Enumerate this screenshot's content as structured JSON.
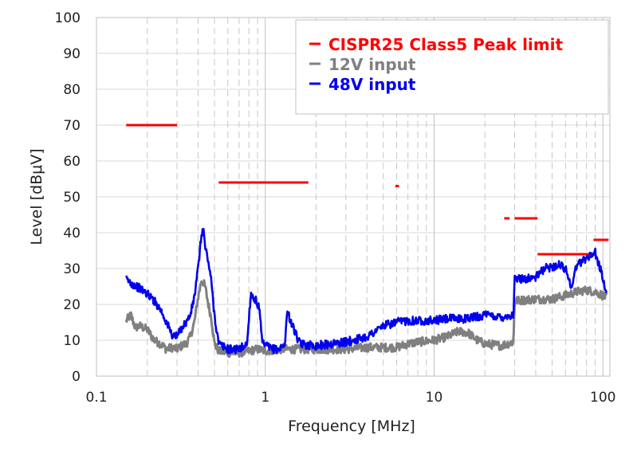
{
  "chart_data": {
    "type": "line",
    "xscale": "log",
    "xlabel": "Frequency [MHz]",
    "ylabel": "Level [dBμV]",
    "xlim": [
      0.1,
      110
    ],
    "ylim": [
      0,
      100
    ],
    "x_ticks": [
      0.1,
      1,
      10,
      100
    ],
    "x_tick_labels": [
      "0.1",
      "1",
      "10",
      "100"
    ],
    "y_ticks": [
      0,
      10,
      20,
      30,
      40,
      50,
      60,
      70,
      80,
      90,
      100
    ],
    "y_tick_labels": [
      "0",
      "10",
      "20",
      "30",
      "40",
      "50",
      "60",
      "70",
      "80",
      "90",
      "100"
    ],
    "grid": "dashed vertical minor lines, solid horizontal major lines",
    "legend_position": "top-right",
    "legend": [
      {
        "label": "CISPR25 Class5 Peak limit",
        "color": "#ff0000"
      },
      {
        "label": "12V input",
        "color": "#808080"
      },
      {
        "label": "48V input",
        "color": "#0000ee"
      }
    ],
    "limit_segments": [
      {
        "x": [
          0.15,
          0.3
        ],
        "y": 70
      },
      {
        "x": [
          0.53,
          1.8
        ],
        "y": 54
      },
      {
        "x": [
          5.9,
          6.2
        ],
        "y": 53
      },
      {
        "x": [
          26,
          28
        ],
        "y": 44
      },
      {
        "x": [
          30,
          41
        ],
        "y": 44
      },
      {
        "x": [
          41,
          88
        ],
        "y": 34
      },
      {
        "x": [
          88,
          108
        ],
        "y": 38
      }
    ],
    "series": [
      {
        "name": "12V input",
        "color": "#808080",
        "points": [
          [
            0.15,
            15.5
          ],
          [
            0.16,
            17
          ],
          [
            0.17,
            13.5
          ],
          [
            0.18,
            14
          ],
          [
            0.2,
            13
          ],
          [
            0.22,
            10
          ],
          [
            0.24,
            9
          ],
          [
            0.26,
            7.5
          ],
          [
            0.28,
            8
          ],
          [
            0.3,
            7.5
          ],
          [
            0.32,
            8.5
          ],
          [
            0.34,
            9
          ],
          [
            0.36,
            11
          ],
          [
            0.38,
            15
          ],
          [
            0.4,
            22
          ],
          [
            0.42,
            27
          ],
          [
            0.44,
            25
          ],
          [
            0.46,
            20
          ],
          [
            0.48,
            16
          ],
          [
            0.5,
            9
          ],
          [
            0.53,
            7
          ],
          [
            0.6,
            6.5
          ],
          [
            0.7,
            6.5
          ],
          [
            0.8,
            7
          ],
          [
            0.9,
            7.5
          ],
          [
            1.0,
            7
          ],
          [
            1.2,
            7.5
          ],
          [
            1.5,
            7.5
          ],
          [
            2,
            7.5
          ],
          [
            3,
            7.5
          ],
          [
            4,
            8
          ],
          [
            5,
            8
          ],
          [
            6,
            8
          ],
          [
            7,
            9
          ],
          [
            8,
            9.5
          ],
          [
            10,
            10
          ],
          [
            12,
            11
          ],
          [
            14,
            12.5
          ],
          [
            16,
            12
          ],
          [
            18,
            10
          ],
          [
            20,
            9
          ],
          [
            25,
            8.5
          ],
          [
            29.5,
            9.5
          ],
          [
            30,
            21
          ],
          [
            40,
            21.5
          ],
          [
            50,
            21.5
          ],
          [
            60,
            22.5
          ],
          [
            70,
            23.5
          ],
          [
            80,
            24
          ],
          [
            90,
            23.5
          ],
          [
            100,
            22.5
          ],
          [
            105,
            22
          ]
        ]
      },
      {
        "name": "48V input",
        "color": "#0000ee",
        "points": [
          [
            0.15,
            27
          ],
          [
            0.16,
            26
          ],
          [
            0.18,
            24.5
          ],
          [
            0.2,
            23
          ],
          [
            0.22,
            21
          ],
          [
            0.24,
            18.5
          ],
          [
            0.26,
            15
          ],
          [
            0.28,
            11.5
          ],
          [
            0.3,
            11
          ],
          [
            0.32,
            13.5
          ],
          [
            0.34,
            15
          ],
          [
            0.36,
            17
          ],
          [
            0.38,
            22
          ],
          [
            0.4,
            30
          ],
          [
            0.42,
            40
          ],
          [
            0.43,
            41
          ],
          [
            0.44,
            36
          ],
          [
            0.46,
            32
          ],
          [
            0.48,
            26
          ],
          [
            0.5,
            17
          ],
          [
            0.53,
            9
          ],
          [
            0.6,
            7.5
          ],
          [
            0.7,
            7.5
          ],
          [
            0.78,
            9
          ],
          [
            0.82,
            23
          ],
          [
            0.88,
            21
          ],
          [
            0.92,
            19
          ],
          [
            0.96,
            9
          ],
          [
            1.1,
            7.5
          ],
          [
            1.2,
            7.5
          ],
          [
            1.3,
            8.5
          ],
          [
            1.35,
            18
          ],
          [
            1.45,
            14
          ],
          [
            1.6,
            9
          ],
          [
            2,
            8.5
          ],
          [
            3,
            9.5
          ],
          [
            4,
            11
          ],
          [
            5,
            14
          ],
          [
            6,
            15
          ],
          [
            7,
            15.5
          ],
          [
            8,
            15.5
          ],
          [
            10,
            15.5
          ],
          [
            12,
            16
          ],
          [
            15,
            16
          ],
          [
            20,
            17
          ],
          [
            25,
            16.5
          ],
          [
            29.5,
            17
          ],
          [
            30,
            27
          ],
          [
            40,
            27.5
          ],
          [
            45,
            30
          ],
          [
            55,
            31
          ],
          [
            60,
            30
          ],
          [
            65,
            25
          ],
          [
            70,
            31
          ],
          [
            80,
            33
          ],
          [
            90,
            34.5
          ],
          [
            95,
            31
          ],
          [
            100,
            27
          ],
          [
            105,
            23
          ]
        ]
      }
    ]
  }
}
